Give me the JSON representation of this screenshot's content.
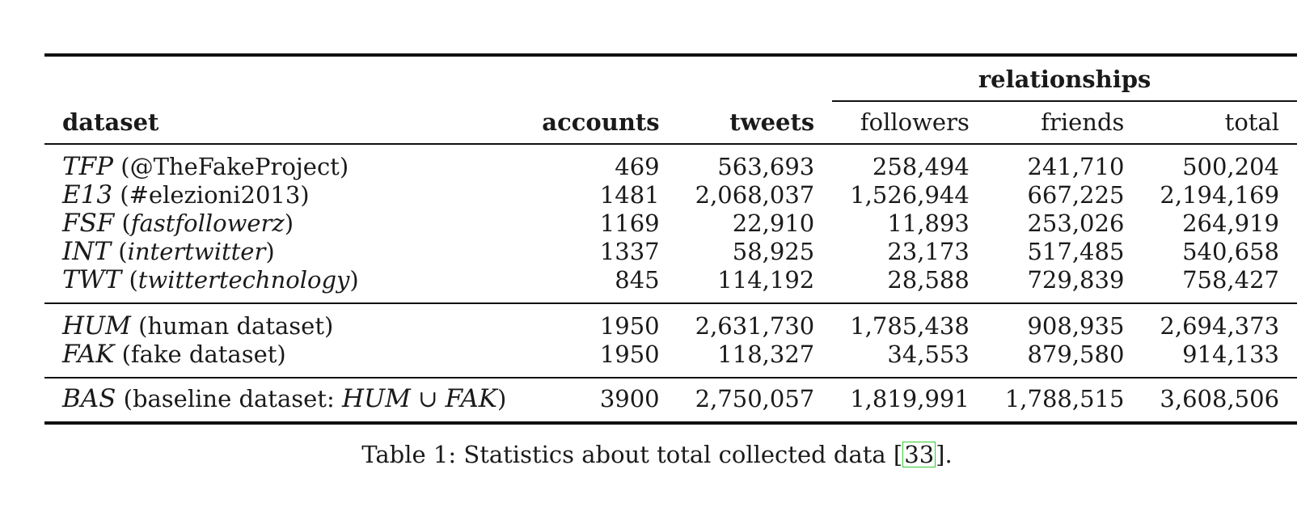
{
  "table": {
    "group_header": "relationships",
    "columns": {
      "dataset": "dataset",
      "accounts": "accounts",
      "tweets": "tweets",
      "followers": "followers",
      "friends": "friends",
      "total": "total"
    },
    "groups": [
      {
        "rows": [
          {
            "abbr": "TFP",
            "desc_open": "(",
            "desc": "@TheFakeProject",
            "desc_close": ")",
            "desc_italic": false,
            "accounts": "469",
            "tweets": "563,693",
            "followers": "258,494",
            "friends": "241,710",
            "total": "500,204"
          },
          {
            "abbr": "E13",
            "desc_open": "(",
            "desc": "#elezioni2013",
            "desc_close": ")",
            "desc_italic": false,
            "accounts": "1481",
            "tweets": "2,068,037",
            "followers": "1,526,944",
            "friends": "667,225",
            "total": "2,194,169"
          },
          {
            "abbr": "FSF",
            "desc_open": "(",
            "desc": "fastfollowerz",
            "desc_close": ")",
            "desc_italic": true,
            "accounts": "1169",
            "tweets": "22,910",
            "followers": "11,893",
            "friends": "253,026",
            "total": "264,919"
          },
          {
            "abbr": "INT",
            "desc_open": "(",
            "desc": "intertwitter",
            "desc_close": ")",
            "desc_italic": true,
            "accounts": "1337",
            "tweets": "58,925",
            "followers": "23,173",
            "friends": "517,485",
            "total": "540,658"
          },
          {
            "abbr": "TWT",
            "desc_open": "(",
            "desc": "twittertechnology",
            "desc_close": ")",
            "desc_italic": true,
            "accounts": "845",
            "tweets": "114,192",
            "followers": "28,588",
            "friends": "729,839",
            "total": "758,427"
          }
        ]
      },
      {
        "rows": [
          {
            "abbr": "HUM",
            "desc_open": "(",
            "desc": "human dataset",
            "desc_close": ")",
            "desc_italic": false,
            "accounts": "1950",
            "tweets": "2,631,730",
            "followers": "1,785,438",
            "friends": "908,935",
            "total": "2,694,373"
          },
          {
            "abbr": "FAK",
            "desc_open": "(",
            "desc": "fake dataset",
            "desc_close": ")",
            "desc_italic": false,
            "accounts": "1950",
            "tweets": "118,327",
            "followers": "34,553",
            "friends": "879,580",
            "total": "914,133"
          }
        ]
      },
      {
        "rows": [
          {
            "abbr": "BAS",
            "desc_prefix": "(baseline dataset: ",
            "desc_math_a": "HUM",
            "desc_union": "∪",
            "desc_math_b": "FAK",
            "desc_close": ")",
            "accounts": "3900",
            "tweets": "2,750,057",
            "followers": "1,819,991",
            "friends": "1,788,515",
            "total": "3,608,506"
          }
        ]
      }
    ]
  },
  "caption": {
    "prefix": "Table 1: Statistics about total collected data ",
    "cite_open": "[",
    "cite": "33",
    "cite_close": "]."
  },
  "colors": {
    "rule": "#111111",
    "cite_box": "#33cc33",
    "text": "#1a1a1a"
  }
}
